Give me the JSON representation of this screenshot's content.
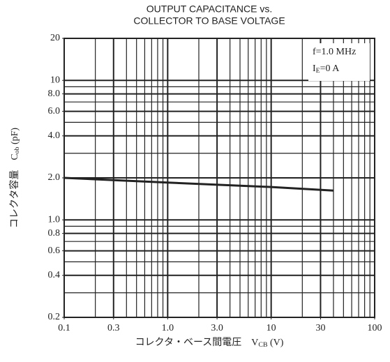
{
  "chart_data": {
    "type": "line",
    "title": [
      "OUTPUT CAPACITANCE vs.",
      "COLLECTOR TO BASE VOLTAGE"
    ],
    "x_label": {
      "main": "コレクタ・ベース間電圧　V",
      "sub": "CB",
      "tail": " (V)"
    },
    "y_label": {
      "main": "コレクタ容量　C",
      "sub": "ob",
      "tail": " (pF)"
    },
    "annotations": [
      {
        "main": "f=1.0 MHz"
      },
      {
        "main": "I",
        "sub": "E",
        "tail": "=0 A"
      }
    ],
    "xlog": true,
    "ylog": true,
    "xlim": [
      0.1,
      100
    ],
    "ylim": [
      0.2,
      20
    ],
    "xticks": [
      0.1,
      0.3,
      {
        "value": 1,
        "label": "1.0"
      },
      {
        "value": 3,
        "label": "3.0"
      },
      10,
      30,
      100
    ],
    "yticks": [
      0.2,
      0.4,
      0.6,
      0.8,
      {
        "value": 1,
        "label": "1.0"
      },
      {
        "value": 2,
        "label": "2.0"
      },
      {
        "value": 4,
        "label": "4.0"
      },
      {
        "value": 6,
        "label": "6.0"
      },
      {
        "value": 8,
        "label": "8.0"
      },
      10,
      20
    ],
    "xgrid": [
      0.2,
      0.3,
      0.4,
      0.5,
      0.6,
      0.7,
      0.8,
      0.9,
      1,
      2,
      3,
      4,
      5,
      6,
      7,
      8,
      9,
      10,
      20,
      30,
      40,
      50,
      60,
      70,
      80,
      90
    ],
    "ygrid": [
      0.3,
      0.4,
      0.5,
      0.6,
      0.7,
      0.8,
      0.9,
      1,
      2,
      3,
      4,
      5,
      6,
      7,
      8,
      9,
      10
    ],
    "series": [
      {
        "name": "Cob",
        "color": "#222222",
        "x": [
          0.1,
          1,
          10,
          40
        ],
        "values": [
          2.0,
          1.85,
          1.72,
          1.62
        ]
      }
    ]
  }
}
